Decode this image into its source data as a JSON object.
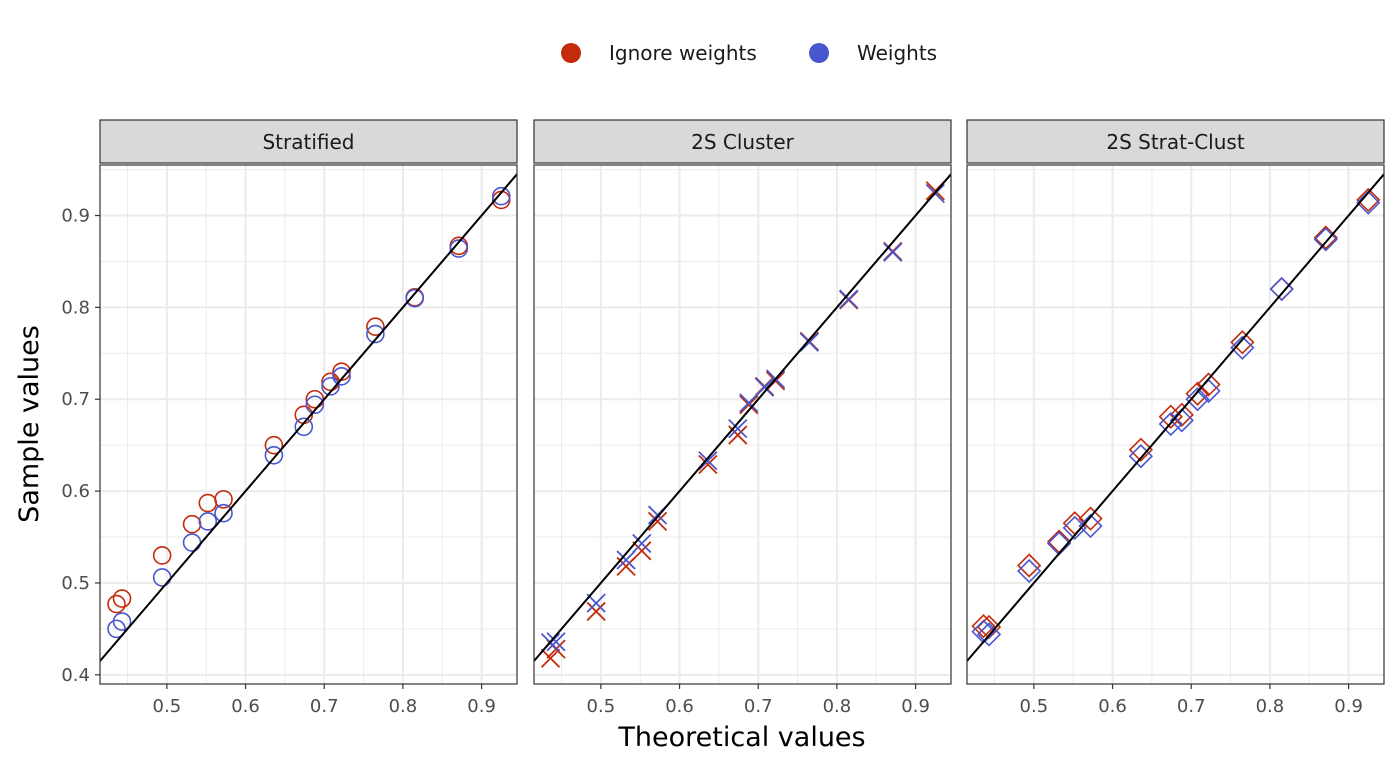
{
  "legend": {
    "position": "top",
    "items": [
      {
        "label": "Ignore weights",
        "color": "#C42B0C"
      },
      {
        "label": "Weights",
        "color": "#4957CF"
      }
    ]
  },
  "chart_data": [
    {
      "type": "scatter",
      "facet": "Stratified",
      "marker": "circle",
      "xlabel": "Theoretical values",
      "ylabel": "Sample values",
      "xlim": [
        0.415,
        0.945
      ],
      "ylim": [
        0.39,
        0.955
      ],
      "xticks": [
        0.5,
        0.6,
        0.7,
        0.8,
        0.9
      ],
      "yticks": [
        0.4,
        0.5,
        0.6,
        0.7,
        0.8,
        0.9
      ],
      "grid": true,
      "reference_line": {
        "slope": 1,
        "intercept": 0
      },
      "series": [
        {
          "name": "Ignore weights",
          "color": "#C42B0C",
          "points": [
            [
              0.436,
              0.477
            ],
            [
              0.443,
              0.483
            ],
            [
              0.494,
              0.53
            ],
            [
              0.532,
              0.564
            ],
            [
              0.552,
              0.587
            ],
            [
              0.572,
              0.591
            ],
            [
              0.636,
              0.65
            ],
            [
              0.674,
              0.683
            ],
            [
              0.688,
              0.7
            ],
            [
              0.708,
              0.719
            ],
            [
              0.722,
              0.73
            ],
            [
              0.765,
              0.779
            ],
            [
              0.815,
              0.811
            ],
            [
              0.871,
              0.867
            ],
            [
              0.925,
              0.917
            ]
          ]
        },
        {
          "name": "Weights",
          "color": "#4957CF",
          "points": [
            [
              0.436,
              0.45
            ],
            [
              0.443,
              0.458
            ],
            [
              0.494,
              0.506
            ],
            [
              0.532,
              0.544
            ],
            [
              0.552,
              0.567
            ],
            [
              0.572,
              0.576
            ],
            [
              0.636,
              0.639
            ],
            [
              0.674,
              0.67
            ],
            [
              0.688,
              0.694
            ],
            [
              0.708,
              0.714
            ],
            [
              0.722,
              0.725
            ],
            [
              0.765,
              0.771
            ],
            [
              0.815,
              0.81
            ],
            [
              0.871,
              0.864
            ],
            [
              0.925,
              0.921
            ]
          ]
        }
      ]
    },
    {
      "type": "scatter",
      "facet": "2S Cluster",
      "marker": "x",
      "xlim": [
        0.415,
        0.945
      ],
      "ylim": [
        0.39,
        0.955
      ],
      "xticks": [
        0.5,
        0.6,
        0.7,
        0.8,
        0.9
      ],
      "grid": true,
      "reference_line": {
        "slope": 1,
        "intercept": 0
      },
      "series": [
        {
          "name": "Ignore weights",
          "color": "#C42B0C",
          "points": [
            [
              0.436,
              0.418
            ],
            [
              0.443,
              0.428
            ],
            [
              0.494,
              0.469
            ],
            [
              0.532,
              0.518
            ],
            [
              0.552,
              0.535
            ],
            [
              0.572,
              0.567
            ],
            [
              0.636,
              0.629
            ],
            [
              0.674,
              0.661
            ],
            [
              0.688,
              0.694
            ],
            [
              0.708,
              0.714
            ],
            [
              0.722,
              0.72
            ],
            [
              0.765,
              0.763
            ],
            [
              0.815,
              0.808
            ],
            [
              0.871,
              0.861
            ],
            [
              0.925,
              0.927
            ]
          ]
        },
        {
          "name": "Weights",
          "color": "#4957CF",
          "points": [
            [
              0.436,
              0.435
            ],
            [
              0.443,
              0.436
            ],
            [
              0.494,
              0.478
            ],
            [
              0.532,
              0.525
            ],
            [
              0.552,
              0.543
            ],
            [
              0.572,
              0.574
            ],
            [
              0.636,
              0.633
            ],
            [
              0.674,
              0.668
            ],
            [
              0.688,
              0.696
            ],
            [
              0.708,
              0.713
            ],
            [
              0.722,
              0.722
            ],
            [
              0.765,
              0.762
            ],
            [
              0.815,
              0.809
            ],
            [
              0.871,
              0.86
            ],
            [
              0.925,
              0.924
            ]
          ]
        }
      ]
    },
    {
      "type": "scatter",
      "facet": "2S Strat-Clust",
      "marker": "diamond",
      "xlim": [
        0.415,
        0.945
      ],
      "ylim": [
        0.39,
        0.955
      ],
      "xticks": [
        0.5,
        0.6,
        0.7,
        0.8,
        0.9
      ],
      "grid": true,
      "reference_line": {
        "slope": 1,
        "intercept": 0
      },
      "series": [
        {
          "name": "Ignore weights",
          "color": "#C42B0C",
          "points": [
            [
              0.436,
              0.453
            ],
            [
              0.443,
              0.452
            ],
            [
              0.494,
              0.519
            ],
            [
              0.532,
              0.545
            ],
            [
              0.552,
              0.565
            ],
            [
              0.572,
              0.57
            ],
            [
              0.636,
              0.645
            ],
            [
              0.674,
              0.681
            ],
            [
              0.688,
              0.683
            ],
            [
              0.708,
              0.706
            ],
            [
              0.722,
              0.716
            ],
            [
              0.765,
              0.762
            ],
            [
              0.815,
              0.82
            ],
            [
              0.871,
              0.876
            ],
            [
              0.925,
              0.917
            ]
          ]
        },
        {
          "name": "Weights",
          "color": "#4957CF",
          "points": [
            [
              0.436,
              0.447
            ],
            [
              0.443,
              0.444
            ],
            [
              0.494,
              0.513
            ],
            [
              0.532,
              0.543
            ],
            [
              0.552,
              0.56
            ],
            [
              0.572,
              0.562
            ],
            [
              0.636,
              0.638
            ],
            [
              0.674,
              0.673
            ],
            [
              0.688,
              0.677
            ],
            [
              0.708,
              0.7
            ],
            [
              0.722,
              0.709
            ],
            [
              0.765,
              0.756
            ],
            [
              0.815,
              0.82
            ],
            [
              0.871,
              0.874
            ],
            [
              0.925,
              0.914
            ]
          ]
        }
      ]
    }
  ]
}
